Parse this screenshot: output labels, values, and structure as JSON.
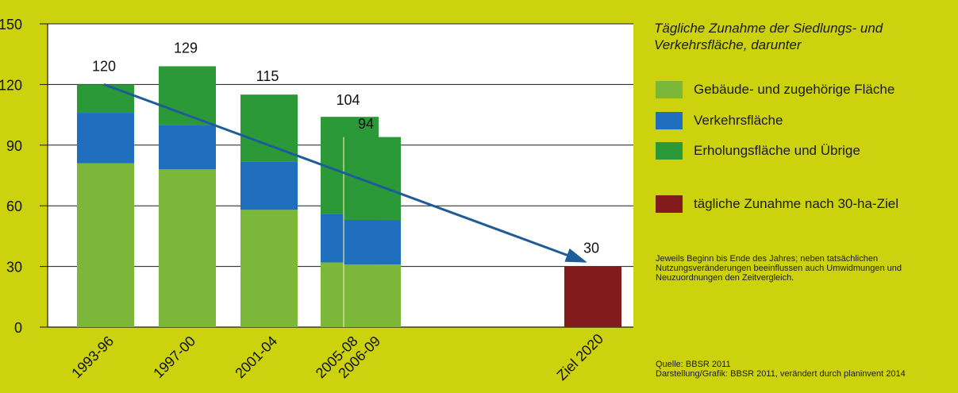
{
  "chart_data": {
    "type": "bar",
    "categories": [
      "1993-96",
      "1997-00",
      "2001-04",
      "2005-08",
      "2006-09",
      "Ziel 2020"
    ],
    "series": [
      {
        "name": "Gebäude- und zugehörige Fläche",
        "values": [
          81,
          78,
          58,
          32,
          31,
          null
        ]
      },
      {
        "name": "Verkehrsfläche",
        "values": [
          25,
          22,
          24,
          24,
          22,
          null
        ]
      },
      {
        "name": "Erholungsfläche und Übrige",
        "values": [
          14,
          29,
          33,
          48,
          41,
          null
        ]
      },
      {
        "name": "tägliche Zunahme nach 30-ha-Ziel",
        "values": [
          null,
          null,
          null,
          null,
          null,
          30
        ]
      }
    ],
    "totals": [
      120,
      129,
      115,
      104,
      94,
      30
    ],
    "total_labels": [
      "120",
      "129",
      "115",
      "104",
      "94",
      "30"
    ],
    "y_ticks": [
      "0",
      "30",
      "60",
      "90",
      "120",
      "150"
    ],
    "ylim": [
      0,
      150
    ],
    "grid": true,
    "colors": {
      "buildings": "#7bb83a",
      "traffic": "#1f6fbe",
      "recreation": "#2b9937",
      "goal": "#821b1b",
      "trend_arrow": "#1f5c9a",
      "chart_background": "#ffffff",
      "frame_background": "#cdd20f"
    },
    "legend_title": "Tägliche Zunahme der Siedlungs- und Verkehrsfläche, darunter",
    "note": "Jeweils Beginn bis Ende des Jahres; neben tatsächlichen Nutzungsveränderungen beeinflussen auch Umwidmungen und Neuzuordnungen den Zeitvergleich.",
    "source": "Quelle: BBSR 2011",
    "credit": "Darstellung/Grafik: BBSR 2011, verändert durch planinvent 2014",
    "trend": {
      "from_category": "1993-96",
      "from_value": 120,
      "to_category": "Ziel 2020",
      "to_value": 30
    }
  }
}
